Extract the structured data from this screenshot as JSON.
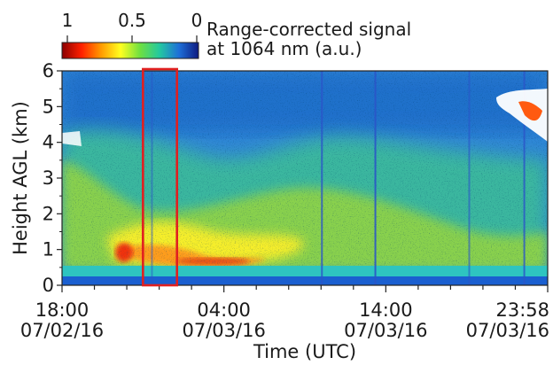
{
  "chart_data": {
    "type": "heatmap",
    "title": "",
    "colorbar": {
      "label_line1": "Range-corrected signal",
      "label_line2": "at 1064 nm (a.u.)",
      "tick_labels": [
        "1",
        "0.5",
        "0"
      ],
      "range": [
        1,
        0
      ],
      "colormap": [
        "#8b0000",
        "#ff2000",
        "#ff9a00",
        "#ffff20",
        "#6ee040",
        "#23c8a0",
        "#1e6fd8",
        "#0d1a80"
      ]
    },
    "xlabel": "Time (UTC)",
    "ylabel": "Height AGL (km)",
    "ylim": [
      0,
      6
    ],
    "yticks": [
      "0",
      "1",
      "2",
      "3",
      "4",
      "5",
      "6"
    ],
    "xticks": [
      {
        "line1": "18:00",
        "line2": "07/02/16"
      },
      {
        "line1": "04:00",
        "line2": "07/03/16"
      },
      {
        "line1": "14:00",
        "line2": "07/03/16"
      },
      {
        "line1": "23:58",
        "line2": "07/03/16"
      }
    ],
    "x_hours_range": [
      0,
      30
    ],
    "highlight_box": {
      "x_start_hours": 5.0,
      "x_end_hours": 7.1,
      "y_range_km": [
        0,
        6
      ],
      "color": "#e02020"
    },
    "features": {
      "surface_layer_top_km": 0.5,
      "aerosol_layer_peak_km": 0.75,
      "aerosol_layer_top_km": 2.0,
      "cloud_top_right_km": 5.5
    }
  }
}
